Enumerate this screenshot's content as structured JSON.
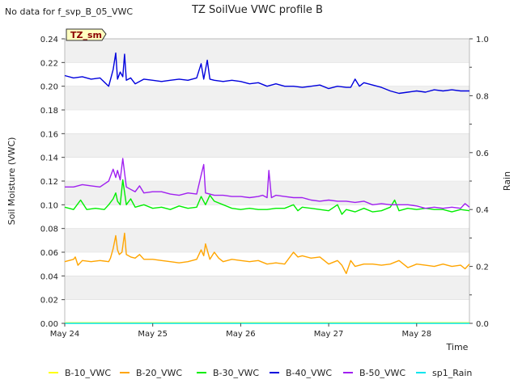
{
  "notice": "No data for f_svp_B_05_VWC",
  "chart_data": {
    "type": "line",
    "title": "TZ SoilVue VWC profile B",
    "xlabel": "Time",
    "ylabel": "Soil Moisture (VWC)",
    "y2label": "Rain",
    "badge": "TZ_sm",
    "x_range_days": [
      0,
      4.6
    ],
    "x_ticks": [
      {
        "day": 0,
        "label": "May 24"
      },
      {
        "day": 1,
        "label": "May 25"
      },
      {
        "day": 2,
        "label": "May 26"
      },
      {
        "day": 3,
        "label": "May 27"
      },
      {
        "day": 4,
        "label": "May 28"
      }
    ],
    "ylim": [
      0,
      0.24
    ],
    "y_ticks": [
      "0.00",
      "0.02",
      "0.04",
      "0.06",
      "0.08",
      "0.10",
      "0.12",
      "0.14",
      "0.16",
      "0.18",
      "0.20",
      "0.22",
      "0.24"
    ],
    "y2lim": [
      0,
      1.0
    ],
    "y2_ticks": [
      "0.0",
      "0.2",
      "0.4",
      "0.6",
      "0.8",
      "1.0"
    ],
    "grid": "horizontal bands",
    "legend_position": "bottom",
    "series": [
      {
        "name": "B-10_VWC",
        "color": "#ffff00",
        "axis": "left",
        "points": [
          [
            0,
            0.0005
          ],
          [
            4.6,
            0.0005
          ]
        ]
      },
      {
        "name": "B-20_VWC",
        "color": "#ffa500",
        "axis": "left",
        "points": [
          [
            0,
            0.052
          ],
          [
            0.1,
            0.054
          ],
          [
            0.12,
            0.056
          ],
          [
            0.15,
            0.049
          ],
          [
            0.2,
            0.053
          ],
          [
            0.3,
            0.052
          ],
          [
            0.4,
            0.053
          ],
          [
            0.5,
            0.052
          ],
          [
            0.52,
            0.055
          ],
          [
            0.55,
            0.063
          ],
          [
            0.58,
            0.074
          ],
          [
            0.6,
            0.062
          ],
          [
            0.62,
            0.058
          ],
          [
            0.65,
            0.06
          ],
          [
            0.68,
            0.076
          ],
          [
            0.7,
            0.058
          ],
          [
            0.75,
            0.056
          ],
          [
            0.8,
            0.055
          ],
          [
            0.85,
            0.058
          ],
          [
            0.9,
            0.054
          ],
          [
            1.0,
            0.054
          ],
          [
            1.1,
            0.053
          ],
          [
            1.2,
            0.052
          ],
          [
            1.3,
            0.051
          ],
          [
            1.4,
            0.052
          ],
          [
            1.5,
            0.054
          ],
          [
            1.55,
            0.062
          ],
          [
            1.58,
            0.057
          ],
          [
            1.6,
            0.067
          ],
          [
            1.65,
            0.054
          ],
          [
            1.7,
            0.06
          ],
          [
            1.75,
            0.055
          ],
          [
            1.8,
            0.052
          ],
          [
            1.9,
            0.054
          ],
          [
            2.0,
            0.053
          ],
          [
            2.1,
            0.052
          ],
          [
            2.2,
            0.053
          ],
          [
            2.3,
            0.05
          ],
          [
            2.4,
            0.051
          ],
          [
            2.5,
            0.05
          ],
          [
            2.6,
            0.06
          ],
          [
            2.65,
            0.056
          ],
          [
            2.7,
            0.057
          ],
          [
            2.8,
            0.055
          ],
          [
            2.9,
            0.056
          ],
          [
            3.0,
            0.05
          ],
          [
            3.1,
            0.053
          ],
          [
            3.15,
            0.049
          ],
          [
            3.2,
            0.042
          ],
          [
            3.25,
            0.053
          ],
          [
            3.3,
            0.048
          ],
          [
            3.4,
            0.05
          ],
          [
            3.5,
            0.05
          ],
          [
            3.6,
            0.049
          ],
          [
            3.7,
            0.05
          ],
          [
            3.8,
            0.053
          ],
          [
            3.9,
            0.047
          ],
          [
            4.0,
            0.05
          ],
          [
            4.1,
            0.049
          ],
          [
            4.2,
            0.048
          ],
          [
            4.3,
            0.05
          ],
          [
            4.4,
            0.048
          ],
          [
            4.5,
            0.049
          ],
          [
            4.55,
            0.046
          ],
          [
            4.6,
            0.05
          ]
        ]
      },
      {
        "name": "B-30_VWC",
        "color": "#00ee00",
        "axis": "left",
        "points": [
          [
            0,
            0.098
          ],
          [
            0.1,
            0.096
          ],
          [
            0.18,
            0.104
          ],
          [
            0.25,
            0.096
          ],
          [
            0.35,
            0.097
          ],
          [
            0.45,
            0.096
          ],
          [
            0.5,
            0.1
          ],
          [
            0.55,
            0.105
          ],
          [
            0.58,
            0.11
          ],
          [
            0.6,
            0.103
          ],
          [
            0.63,
            0.1
          ],
          [
            0.66,
            0.121
          ],
          [
            0.7,
            0.1
          ],
          [
            0.75,
            0.105
          ],
          [
            0.8,
            0.098
          ],
          [
            0.9,
            0.1
          ],
          [
            1.0,
            0.097
          ],
          [
            1.1,
            0.098
          ],
          [
            1.2,
            0.096
          ],
          [
            1.3,
            0.099
          ],
          [
            1.4,
            0.097
          ],
          [
            1.5,
            0.098
          ],
          [
            1.55,
            0.107
          ],
          [
            1.6,
            0.1
          ],
          [
            1.65,
            0.108
          ],
          [
            1.7,
            0.103
          ],
          [
            1.8,
            0.1
          ],
          [
            1.9,
            0.097
          ],
          [
            2.0,
            0.096
          ],
          [
            2.1,
            0.097
          ],
          [
            2.2,
            0.096
          ],
          [
            2.3,
            0.096
          ],
          [
            2.4,
            0.097
          ],
          [
            2.5,
            0.097
          ],
          [
            2.6,
            0.1
          ],
          [
            2.65,
            0.095
          ],
          [
            2.7,
            0.098
          ],
          [
            2.8,
            0.097
          ],
          [
            2.9,
            0.096
          ],
          [
            3.0,
            0.095
          ],
          [
            3.1,
            0.1
          ],
          [
            3.15,
            0.092
          ],
          [
            3.2,
            0.096
          ],
          [
            3.3,
            0.094
          ],
          [
            3.4,
            0.097
          ],
          [
            3.5,
            0.094
          ],
          [
            3.6,
            0.095
          ],
          [
            3.7,
            0.098
          ],
          [
            3.75,
            0.104
          ],
          [
            3.8,
            0.095
          ],
          [
            3.9,
            0.097
          ],
          [
            4.0,
            0.096
          ],
          [
            4.1,
            0.097
          ],
          [
            4.2,
            0.096
          ],
          [
            4.3,
            0.096
          ],
          [
            4.4,
            0.094
          ],
          [
            4.5,
            0.096
          ],
          [
            4.6,
            0.095
          ]
        ]
      },
      {
        "name": "B-40_VWC",
        "color": "#0000dd",
        "axis": "left",
        "points": [
          [
            0,
            0.209
          ],
          [
            0.1,
            0.207
          ],
          [
            0.2,
            0.208
          ],
          [
            0.3,
            0.206
          ],
          [
            0.4,
            0.207
          ],
          [
            0.5,
            0.2
          ],
          [
            0.55,
            0.214
          ],
          [
            0.58,
            0.228
          ],
          [
            0.6,
            0.206
          ],
          [
            0.63,
            0.212
          ],
          [
            0.66,
            0.208
          ],
          [
            0.68,
            0.227
          ],
          [
            0.7,
            0.205
          ],
          [
            0.75,
            0.207
          ],
          [
            0.8,
            0.202
          ],
          [
            0.9,
            0.206
          ],
          [
            1.0,
            0.205
          ],
          [
            1.1,
            0.204
          ],
          [
            1.2,
            0.205
          ],
          [
            1.3,
            0.206
          ],
          [
            1.4,
            0.205
          ],
          [
            1.5,
            0.207
          ],
          [
            1.55,
            0.219
          ],
          [
            1.58,
            0.206
          ],
          [
            1.62,
            0.222
          ],
          [
            1.65,
            0.206
          ],
          [
            1.7,
            0.205
          ],
          [
            1.8,
            0.204
          ],
          [
            1.9,
            0.205
          ],
          [
            2.0,
            0.204
          ],
          [
            2.1,
            0.202
          ],
          [
            2.2,
            0.203
          ],
          [
            2.3,
            0.2
          ],
          [
            2.4,
            0.202
          ],
          [
            2.5,
            0.2
          ],
          [
            2.6,
            0.2
          ],
          [
            2.7,
            0.199
          ],
          [
            2.8,
            0.2
          ],
          [
            2.9,
            0.201
          ],
          [
            3.0,
            0.198
          ],
          [
            3.1,
            0.2
          ],
          [
            3.2,
            0.199
          ],
          [
            3.25,
            0.199
          ],
          [
            3.3,
            0.206
          ],
          [
            3.35,
            0.2
          ],
          [
            3.4,
            0.203
          ],
          [
            3.5,
            0.201
          ],
          [
            3.6,
            0.199
          ],
          [
            3.7,
            0.196
          ],
          [
            3.8,
            0.194
          ],
          [
            3.9,
            0.195
          ],
          [
            4.0,
            0.196
          ],
          [
            4.1,
            0.195
          ],
          [
            4.2,
            0.197
          ],
          [
            4.3,
            0.196
          ],
          [
            4.4,
            0.197
          ],
          [
            4.5,
            0.196
          ],
          [
            4.6,
            0.196
          ]
        ]
      },
      {
        "name": "B-50_VWC",
        "color": "#a020f0",
        "axis": "left",
        "points": [
          [
            0,
            0.115
          ],
          [
            0.1,
            0.115
          ],
          [
            0.2,
            0.117
          ],
          [
            0.3,
            0.116
          ],
          [
            0.4,
            0.115
          ],
          [
            0.5,
            0.12
          ],
          [
            0.55,
            0.13
          ],
          [
            0.58,
            0.123
          ],
          [
            0.6,
            0.129
          ],
          [
            0.63,
            0.121
          ],
          [
            0.66,
            0.139
          ],
          [
            0.7,
            0.115
          ],
          [
            0.75,
            0.113
          ],
          [
            0.8,
            0.111
          ],
          [
            0.85,
            0.116
          ],
          [
            0.9,
            0.11
          ],
          [
            1.0,
            0.111
          ],
          [
            1.1,
            0.111
          ],
          [
            1.2,
            0.109
          ],
          [
            1.3,
            0.108
          ],
          [
            1.4,
            0.11
          ],
          [
            1.5,
            0.109
          ],
          [
            1.55,
            0.125
          ],
          [
            1.58,
            0.134
          ],
          [
            1.6,
            0.11
          ],
          [
            1.7,
            0.108
          ],
          [
            1.8,
            0.108
          ],
          [
            1.9,
            0.107
          ],
          [
            2.0,
            0.107
          ],
          [
            2.1,
            0.106
          ],
          [
            2.2,
            0.107
          ],
          [
            2.25,
            0.108
          ],
          [
            2.3,
            0.106
          ],
          [
            2.32,
            0.129
          ],
          [
            2.35,
            0.106
          ],
          [
            2.4,
            0.108
          ],
          [
            2.5,
            0.107
          ],
          [
            2.6,
            0.106
          ],
          [
            2.7,
            0.106
          ],
          [
            2.8,
            0.104
          ],
          [
            2.9,
            0.103
          ],
          [
            3.0,
            0.104
          ],
          [
            3.1,
            0.103
          ],
          [
            3.2,
            0.103
          ],
          [
            3.3,
            0.102
          ],
          [
            3.4,
            0.103
          ],
          [
            3.5,
            0.1
          ],
          [
            3.6,
            0.101
          ],
          [
            3.7,
            0.1
          ],
          [
            3.8,
            0.1
          ],
          [
            3.9,
            0.1
          ],
          [
            4.0,
            0.099
          ],
          [
            4.1,
            0.097
          ],
          [
            4.2,
            0.098
          ],
          [
            4.3,
            0.097
          ],
          [
            4.4,
            0.098
          ],
          [
            4.5,
            0.097
          ],
          [
            4.55,
            0.101
          ],
          [
            4.6,
            0.098
          ]
        ]
      },
      {
        "name": "sp1_Rain",
        "color": "#00e5ee",
        "axis": "right",
        "points": [
          [
            0,
            0.0
          ],
          [
            4.6,
            0.0
          ]
        ]
      }
    ]
  }
}
